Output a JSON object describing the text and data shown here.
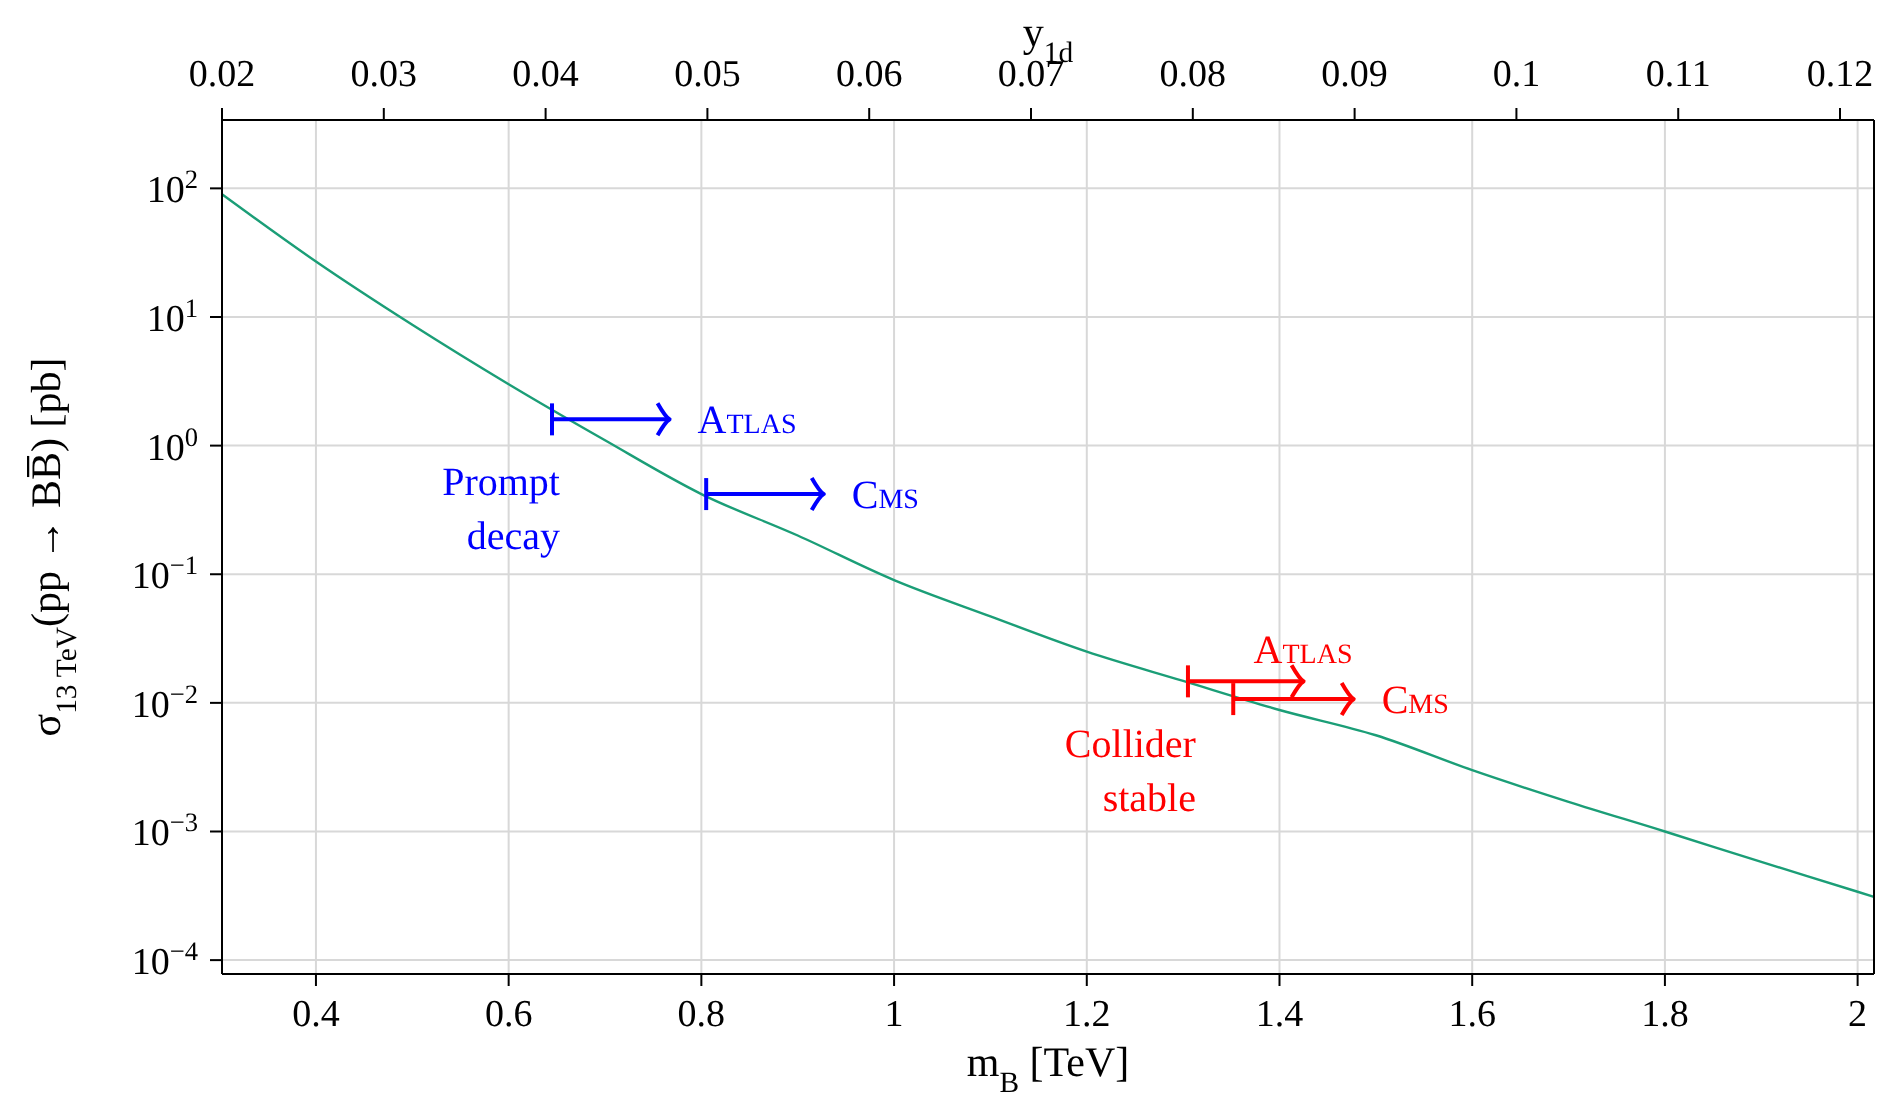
{
  "chart_data": {
    "type": "line",
    "xlabel": "m$_{B}$ [TeV]",
    "ylabel": "σ$_{13 TeV}$(pp → BB̅) [pb]",
    "x2label": "y$_{1d}$",
    "xlim": [
      0.3025,
      2.017
    ],
    "xticks": [
      0.4,
      0.6,
      0.8,
      1,
      1.2,
      1.4,
      1.6,
      1.8,
      2
    ],
    "x2lim": [
      0.02,
      0.1221
    ],
    "x2ticks": [
      0.02,
      0.03,
      0.04,
      0.05,
      0.06,
      0.07,
      0.08,
      0.09,
      0.1,
      0.11,
      0.12
    ],
    "ylim": [
      7.8e-05,
      340
    ],
    "log": "y",
    "yticks": [
      {
        "value": 0.0001,
        "label": "10$^{−4}$"
      },
      {
        "value": 0.001,
        "label": "10$^{−3}$"
      },
      {
        "value": 0.01,
        "label": "10$^{−2}$"
      },
      {
        "value": 0.1,
        "label": "10$^{−1}$"
      },
      {
        "value": 1,
        "label": "10$^{0}$"
      },
      {
        "value": 10,
        "label": "10$^{1}$"
      },
      {
        "value": 100,
        "label": "10$^{2}$"
      }
    ],
    "grid": true,
    "series": [
      {
        "color": "#1b9e77",
        "x": [
          0.3025,
          0.4,
          0.5,
          0.6,
          0.7,
          0.8,
          0.9,
          1.0,
          1.1,
          1.2,
          1.3,
          1.4,
          1.5,
          1.6,
          1.7,
          1.8,
          1.9,
          2.0,
          2.017
        ],
        "values": [
          90,
          27,
          8.7,
          3.0,
          1.1,
          0.42,
          0.2,
          0.09,
          0.047,
          0.025,
          0.0148,
          0.0088,
          0.0056,
          0.003,
          0.0017,
          0.001,
          0.00058,
          0.00034,
          0.00031
        ]
      },
      {
        "name": "Atlas",
        "color": "#0000ff",
        "x": [
          0.645,
          0.767
        ],
        "values": [
          1.6,
          1.6
        ]
      },
      {
        "name": "Cms",
        "color": "#0000ff",
        "x": [
          0.805,
          0.927
        ],
        "values": [
          0.42,
          0.42
        ]
      },
      {
        "name": "Atlas",
        "color": "#ff0000",
        "x": [
          1.305,
          1.425
        ],
        "values": [
          0.0147,
          0.0147
        ]
      },
      {
        "name": "Cms",
        "color": "#ff0000",
        "x": [
          1.352,
          1.477
        ],
        "values": [
          0.0107,
          0.0107
        ]
      }
    ],
    "annotations": [
      "Prompt decay",
      "Collider stable"
    ]
  }
}
